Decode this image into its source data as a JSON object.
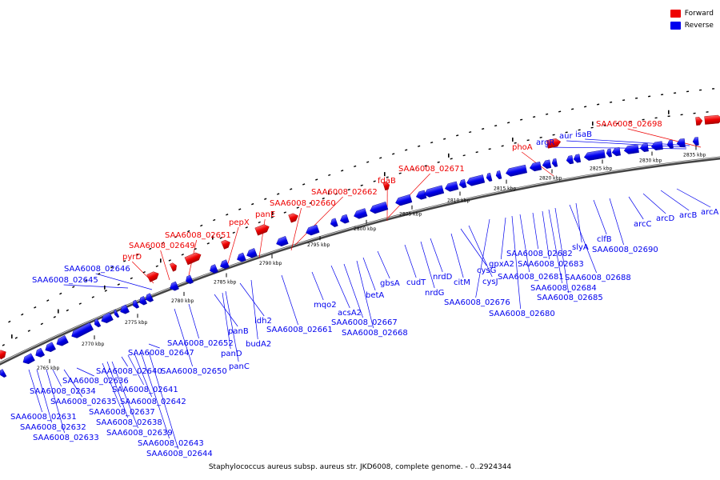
{
  "legend": {
    "forward_label": "Forward",
    "reverse_label": "Reverse"
  },
  "caption": "Staphylococcus aureus subsp. aureus str. JKD6008, complete genome. - 0..2924344",
  "colors": {
    "forward": "#ee0000",
    "reverse": "#0000ee",
    "backbone": "#555555"
  },
  "ticks": [
    {
      "kb": 2765,
      "label": "2765 kbp"
    },
    {
      "kb": 2770,
      "label": "2770 kbp"
    },
    {
      "kb": 2775,
      "label": "2775 kbp"
    },
    {
      "kb": 2780,
      "label": "2780 kbp"
    },
    {
      "kb": 2785,
      "label": "2785 kbp"
    },
    {
      "kb": 2790,
      "label": "2790 kbp"
    },
    {
      "kb": 2795,
      "label": "2795 kbp"
    },
    {
      "kb": 2800,
      "label": "2800 kbp"
    },
    {
      "kb": 2805,
      "label": "2805 kbp"
    },
    {
      "kb": 2810,
      "label": "2810 kbp"
    },
    {
      "kb": 2815,
      "label": "2815 kbp"
    },
    {
      "kb": 2820,
      "label": "2820 kbp"
    },
    {
      "kb": 2825,
      "label": "2825 kbp"
    },
    {
      "kb": 2830,
      "label": "2830 kbp"
    },
    {
      "kb": 2835,
      "label": "2835 kbp"
    }
  ],
  "forward_genes": [
    {
      "label": "pyrD"
    },
    {
      "label": "SAA6008_02649"
    },
    {
      "label": "SAA6008_02651"
    },
    {
      "label": "pepX"
    },
    {
      "label": "panE"
    },
    {
      "label": "SAA6008_02660"
    },
    {
      "label": "SAA6008_02662"
    },
    {
      "label": "fdaB"
    },
    {
      "label": "SAA6008_02671"
    },
    {
      "label": "phoA"
    },
    {
      "label": "SAA6008_02698"
    }
  ],
  "reverse_genes_above": [
    {
      "label": "SAA6008_02645"
    },
    {
      "label": "SAA6008_02646"
    },
    {
      "label": "argR"
    },
    {
      "label": "aur"
    },
    {
      "label": "isaB"
    }
  ],
  "reverse_genes_below": [
    {
      "label": "SAA6008_02631"
    },
    {
      "label": "SAA6008_02632"
    },
    {
      "label": "SAA6008_02633"
    },
    {
      "label": "SAA6008_02634"
    },
    {
      "label": "SAA6008_02635"
    },
    {
      "label": "SAA6008_02636"
    },
    {
      "label": "SAA6008_02637"
    },
    {
      "label": "SAA6008_02638"
    },
    {
      "label": "SAA6008_02639"
    },
    {
      "label": "SAA6008_02640"
    },
    {
      "label": "SAA6008_02641"
    },
    {
      "label": "SAA6008_02642"
    },
    {
      "label": "SAA6008_02643"
    },
    {
      "label": "SAA6008_02644"
    },
    {
      "label": "SAA6008_02647"
    },
    {
      "label": "SAA6008_02650"
    },
    {
      "label": "SAA6008_02652"
    },
    {
      "label": "panB"
    },
    {
      "label": "panD"
    },
    {
      "label": "panC"
    },
    {
      "label": "ldh2"
    },
    {
      "label": "budA2"
    },
    {
      "label": "SAA6008_02661"
    },
    {
      "label": "mqo2"
    },
    {
      "label": "acsA2"
    },
    {
      "label": "SAA6008_02667"
    },
    {
      "label": "SAA6008_02668"
    },
    {
      "label": "betA"
    },
    {
      "label": "gbsA"
    },
    {
      "label": "cudT"
    },
    {
      "label": "nrdG"
    },
    {
      "label": "nrdD"
    },
    {
      "label": "citM"
    },
    {
      "label": "cysG"
    },
    {
      "label": "cysJ"
    },
    {
      "label": "SAA6008_02676"
    },
    {
      "label": "gpxA2"
    },
    {
      "label": "SAA6008_02680"
    },
    {
      "label": "SAA6008_02681"
    },
    {
      "label": "SAA6008_02682"
    },
    {
      "label": "SAA6008_02683"
    },
    {
      "label": "SAA6008_02684"
    },
    {
      "label": "SAA6008_02685"
    },
    {
      "label": "SAA6008_02688"
    },
    {
      "label": "slyA"
    },
    {
      "label": "clfB"
    },
    {
      "label": "SAA6008_02690"
    },
    {
      "label": "arcC"
    },
    {
      "label": "arcD"
    },
    {
      "label": "arcB"
    },
    {
      "label": "arcA"
    }
  ]
}
